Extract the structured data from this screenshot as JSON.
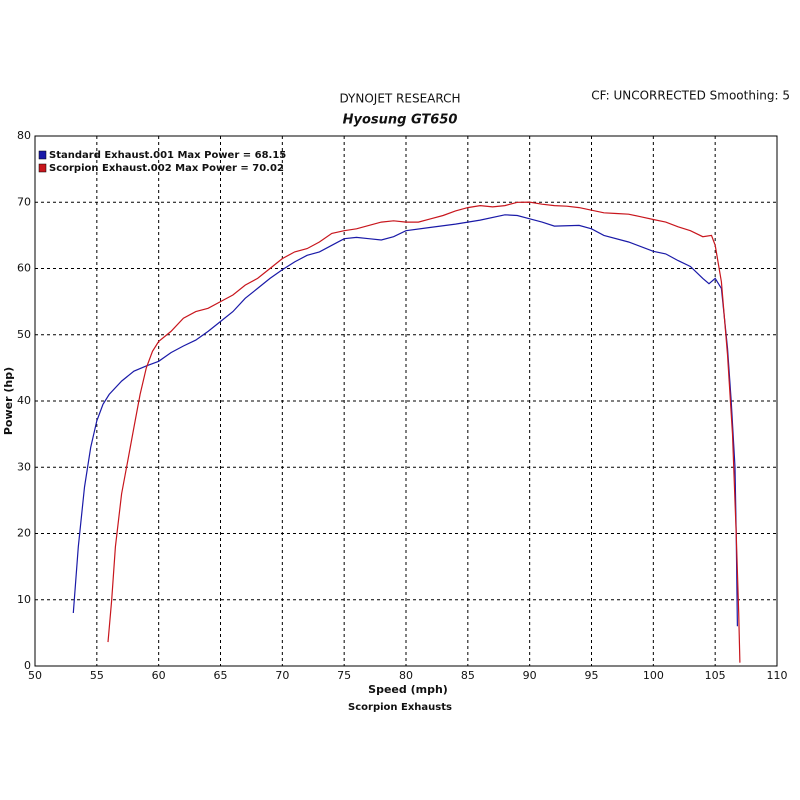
{
  "chart_data": {
    "type": "line",
    "title": "DYNOJET RESEARCH",
    "subtitle": "Hyosung GT650",
    "annotation": "CF: UNCORRECTED  Smoothing: 5",
    "x_label": "Speed (mph)",
    "y_label": "Power (hp)",
    "footer": "Scorpion Exhausts",
    "xlim": [
      50,
      110
    ],
    "ylim": [
      0,
      80
    ],
    "xticks": [
      50,
      55,
      60,
      65,
      70,
      75,
      80,
      85,
      90,
      95,
      100,
      105,
      110
    ],
    "yticks": [
      0,
      10,
      20,
      30,
      40,
      50,
      60,
      70,
      80
    ],
    "grid": true,
    "legend": "upper-left",
    "series": [
      {
        "name": "Standard Exhaust.001 Max Power = 68.15",
        "color": "#1a1aa8",
        "x": [
          53.1,
          53.5,
          54,
          54.5,
          55,
          55.5,
          56,
          57,
          58,
          59,
          60,
          61,
          62,
          63,
          64,
          65,
          66,
          67,
          68,
          69,
          70,
          71,
          72,
          73,
          74,
          75,
          76,
          77,
          78,
          79,
          80,
          82,
          84,
          86,
          88,
          89,
          90,
          91,
          92,
          94,
          95,
          96,
          98,
          100,
          101,
          102,
          103,
          104,
          104.5,
          105,
          105.5,
          106,
          106.3,
          106.6,
          106.7,
          106.8
        ],
        "values": [
          8,
          18,
          27,
          33,
          37,
          39.5,
          41,
          43,
          44.5,
          45.3,
          46,
          47.3,
          48.3,
          49.2,
          50.5,
          52,
          53.5,
          55.5,
          57,
          58.5,
          59.8,
          61,
          62,
          62.5,
          63.5,
          64.5,
          64.7,
          64.5,
          64.3,
          64.8,
          65.7,
          66.2,
          66.7,
          67.3,
          68.1,
          68,
          67.5,
          67,
          66.4,
          66.5,
          66,
          65,
          64,
          62.6,
          62.2,
          61.2,
          60.3,
          58.5,
          57.7,
          58.5,
          57,
          48,
          40,
          30,
          20,
          6
        ]
      },
      {
        "name": "Scorpion Exhaust.002 Max Power = 70.02",
        "color": "#c8161d",
        "x": [
          55.9,
          56.2,
          56.5,
          57,
          57.5,
          58,
          58.5,
          59,
          59.5,
          60,
          61,
          62,
          63,
          64,
          65,
          66,
          67,
          68,
          69,
          70,
          71,
          72,
          73,
          74,
          75,
          76,
          77,
          78,
          79,
          80,
          81,
          82,
          83,
          84,
          85,
          86,
          87,
          88,
          89,
          90,
          91,
          92,
          93,
          94,
          95,
          96,
          97,
          98,
          99,
          100,
          101,
          102,
          103,
          104,
          104.7,
          105,
          105.5,
          106,
          106.4,
          106.7,
          106.9,
          107
        ],
        "values": [
          3.6,
          10,
          18,
          26,
          31,
          36,
          41,
          45,
          47.5,
          49,
          50.5,
          52.5,
          53.5,
          54,
          55,
          56,
          57.5,
          58.5,
          60,
          61.5,
          62.5,
          63,
          64,
          65.3,
          65.7,
          66,
          66.5,
          67,
          67.2,
          67,
          67,
          67.5,
          68,
          68.7,
          69.2,
          69.5,
          69.3,
          69.5,
          70,
          70.02,
          69.7,
          69.5,
          69.4,
          69.2,
          68.8,
          68.4,
          68.3,
          68.2,
          67.8,
          67.4,
          67,
          66.3,
          65.7,
          64.8,
          65,
          63.5,
          58,
          47,
          35,
          20,
          8,
          0.5
        ]
      }
    ]
  }
}
